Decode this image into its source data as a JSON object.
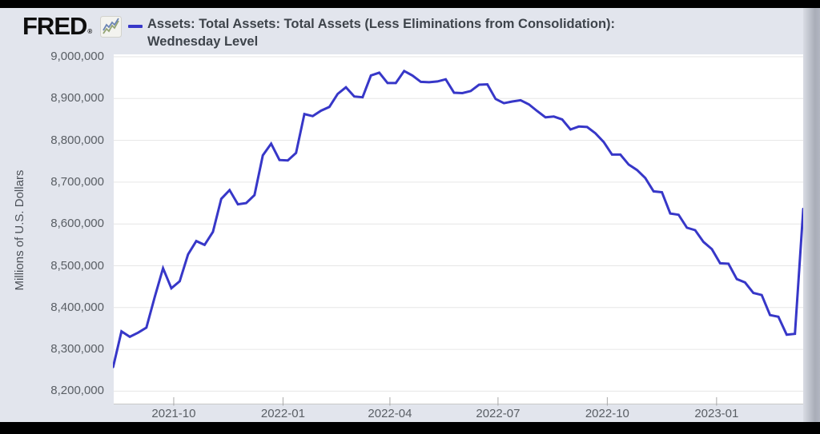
{
  "header": {
    "logo_text": "FRED",
    "logo_registered_mark": "®",
    "series_title_line1": "Assets: Total Assets: Total Assets (Less Eliminations from Consolidation):",
    "series_title_line2": "Wednesday Level"
  },
  "colors": {
    "line": "#3737c8",
    "page_background": "#e2e5ed",
    "plot_background": "#ffffff",
    "gridline": "#e6e6e6",
    "axis_line": "#c8c8c8",
    "tick_mark": "#a9a9a9",
    "label_text": "#595e64",
    "title_text": "#3e444b",
    "top_bottom_bars": "#000000"
  },
  "chart_data": {
    "type": "line",
    "title": "Assets: Total Assets: Total Assets (Less Eliminations from Consolidation): Wednesday Level",
    "ylabel": "Millions of U.S. Dollars",
    "xlabel": "",
    "grid": "horizontal",
    "legend_position": "top-left",
    "ylim": [
      8200000,
      9000000
    ],
    "y_tick_values": [
      9000000,
      8900000,
      8800000,
      8700000,
      8600000,
      8500000,
      8400000,
      8300000,
      8200000
    ],
    "x_tick_labels": [
      "2021-10",
      "2022-01",
      "2022-04",
      "2022-07",
      "2022-10",
      "2023-01"
    ],
    "series": [
      {
        "name": "Assets: Total Assets: Total Assets (Less Eliminations from Consolidation): Wednesday Level",
        "color": "#3737c8",
        "dates": [
          "2021-08-11",
          "2021-08-18",
          "2021-08-25",
          "2021-09-01",
          "2021-09-08",
          "2021-09-15",
          "2021-09-22",
          "2021-09-29",
          "2021-10-06",
          "2021-10-13",
          "2021-10-20",
          "2021-10-27",
          "2021-11-03",
          "2021-11-10",
          "2021-11-17",
          "2021-11-24",
          "2021-12-01",
          "2021-12-08",
          "2021-12-15",
          "2021-12-22",
          "2021-12-29",
          "2022-01-05",
          "2022-01-12",
          "2022-01-19",
          "2022-01-26",
          "2022-02-02",
          "2022-02-09",
          "2022-02-16",
          "2022-02-23",
          "2022-03-02",
          "2022-03-09",
          "2022-03-16",
          "2022-03-23",
          "2022-03-30",
          "2022-04-06",
          "2022-04-13",
          "2022-04-20",
          "2022-04-27",
          "2022-05-04",
          "2022-05-11",
          "2022-05-18",
          "2022-05-25",
          "2022-06-01",
          "2022-06-08",
          "2022-06-15",
          "2022-06-22",
          "2022-06-29",
          "2022-07-06",
          "2022-07-13",
          "2022-07-20",
          "2022-07-27",
          "2022-08-03",
          "2022-08-10",
          "2022-08-17",
          "2022-08-24",
          "2022-08-31",
          "2022-09-07",
          "2022-09-14",
          "2022-09-21",
          "2022-09-28",
          "2022-10-05",
          "2022-10-12",
          "2022-10-19",
          "2022-10-26",
          "2022-11-02",
          "2022-11-09",
          "2022-11-16",
          "2022-11-23",
          "2022-11-30",
          "2022-12-07",
          "2022-12-14",
          "2022-12-21",
          "2022-12-28",
          "2023-01-04",
          "2023-01-11",
          "2023-01-18",
          "2023-01-25",
          "2023-02-01",
          "2023-02-08",
          "2023-02-15",
          "2023-02-22",
          "2023-03-01",
          "2023-03-08",
          "2023-03-15"
        ],
        "values": [
          8258000,
          8343000,
          8330000,
          8340000,
          8352000,
          8425000,
          8494000,
          8446000,
          8463000,
          8527000,
          8559000,
          8550000,
          8581000,
          8660000,
          8681000,
          8647000,
          8650000,
          8669000,
          8764000,
          8792000,
          8753000,
          8752000,
          8770000,
          8863000,
          8858000,
          8871000,
          8880000,
          8911000,
          8927000,
          8905000,
          8903000,
          8955000,
          8962000,
          8937000,
          8937000,
          8966000,
          8955000,
          8940000,
          8939000,
          8941000,
          8946000,
          8914000,
          8913000,
          8918000,
          8933000,
          8934000,
          8899000,
          8889000,
          8893000,
          8896000,
          8886000,
          8870000,
          8855000,
          8857000,
          8850000,
          8826000,
          8833000,
          8832000,
          8817000,
          8796000,
          8766000,
          8766000,
          8742000,
          8729000,
          8710000,
          8678000,
          8676000,
          8625000,
          8622000,
          8591000,
          8585000,
          8557000,
          8540000,
          8506000,
          8505000,
          8468000,
          8460000,
          8435000,
          8430000,
          8382000,
          8378000,
          8335000,
          8337000,
          8636000
        ]
      }
    ]
  }
}
